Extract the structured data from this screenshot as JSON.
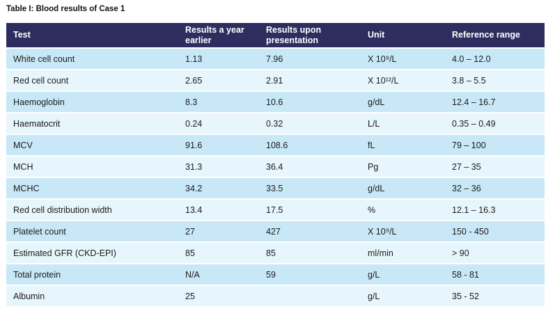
{
  "title": "Table I: Blood results of Case 1",
  "table": {
    "columns": [
      {
        "key": "test",
        "label": "Test"
      },
      {
        "key": "earlier",
        "label": "Results a year earlier"
      },
      {
        "key": "presentation",
        "label": "Results upon presentation"
      },
      {
        "key": "unit",
        "label": "Unit"
      },
      {
        "key": "range",
        "label": "Reference range"
      }
    ],
    "rows": [
      {
        "test": "White cell count",
        "earlier": "1.13",
        "presentation": "7.96",
        "unit": "X 10⁹/L",
        "range": "4.0 – 12.0"
      },
      {
        "test": "Red cell count",
        "earlier": "2.65",
        "presentation": "2.91",
        "unit": "X 10¹²/L",
        "range": "3.8 – 5.5"
      },
      {
        "test": "Haemoglobin",
        "earlier": "8.3",
        "presentation": "10.6",
        "unit": "g/dL",
        "range": "12.4 – 16.7"
      },
      {
        "test": "Haematocrit",
        "earlier": "0.24",
        "presentation": "0.32",
        "unit": "L/L",
        "range": "0.35 – 0.49"
      },
      {
        "test": "MCV",
        "earlier": "91.6",
        "presentation": "108.6",
        "unit": "fL",
        "range": "79 – 100"
      },
      {
        "test": "MCH",
        "earlier": "31.3",
        "presentation": "36.4",
        "unit": "Pg",
        "range": "27 – 35"
      },
      {
        "test": "MCHC",
        "earlier": "34.2",
        "presentation": "33.5",
        "unit": "g/dL",
        "range": "32 – 36"
      },
      {
        "test": "Red cell distribution width",
        "earlier": "13.4",
        "presentation": "17.5",
        "unit": "%",
        "range": "12.1 – 16.3"
      },
      {
        "test": "Platelet count",
        "earlier": "27",
        "presentation": "427",
        "unit": "X 10⁹/L",
        "range": "150 - 450"
      },
      {
        "test": "Estimated GFR (CKD-EPI)",
        "earlier": "85",
        "presentation": "85",
        "unit": "ml/min",
        "range": "> 90"
      },
      {
        "test": "Total protein",
        "earlier": "N/A",
        "presentation": "59",
        "unit": "g/L",
        "range": "58 - 81"
      },
      {
        "test": "Albumin",
        "earlier": "25",
        "presentation": "",
        "unit": "g/L",
        "range": "35 - 52"
      }
    ]
  },
  "colors": {
    "header_bg": "#2d2e5f",
    "header_text": "#ffffff",
    "row_odd": "#c9e8f7",
    "row_even": "#e7f5fc",
    "body_text": "#1a1a1a"
  }
}
